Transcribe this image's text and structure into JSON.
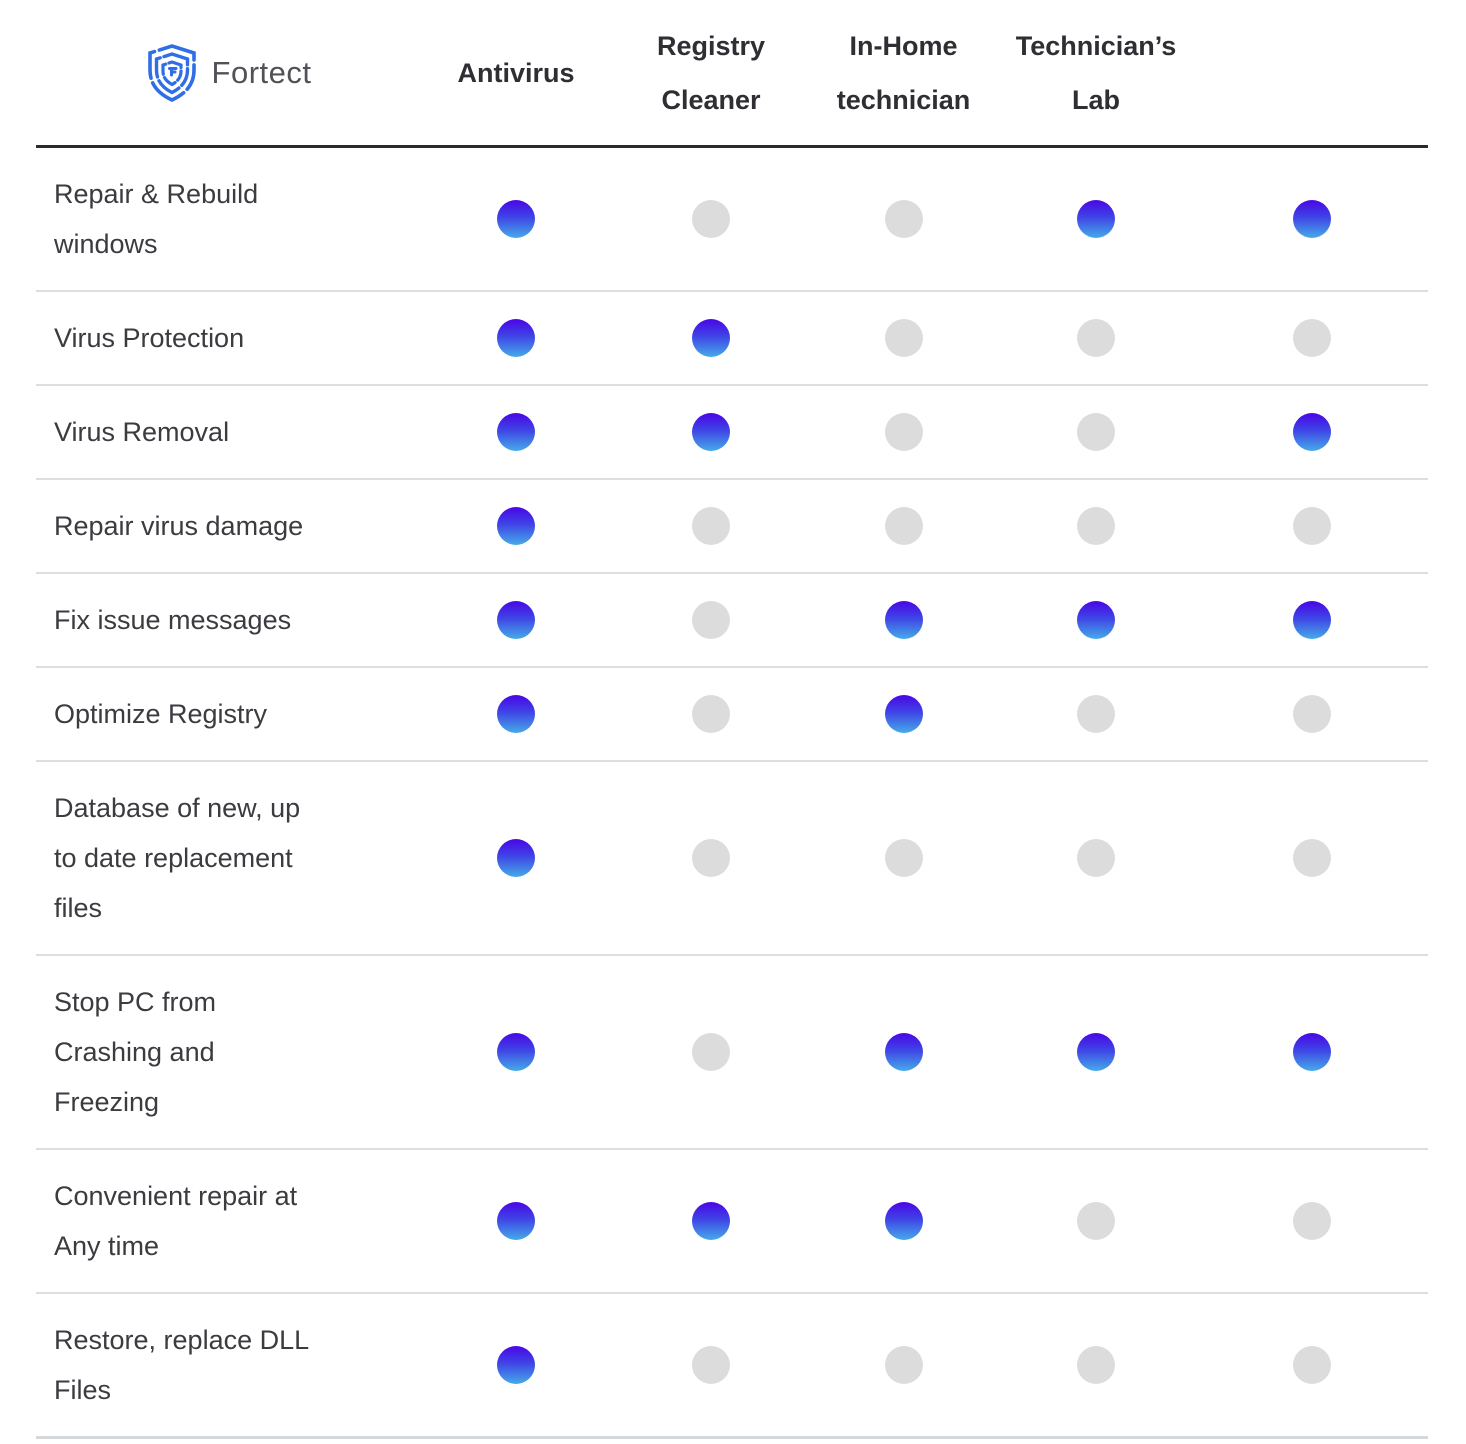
{
  "brand": {
    "name": "Fortect",
    "logo_icon": "fortect-shield-icon",
    "logo_color": "#2f6ee4"
  },
  "columns": [
    {
      "label": "Fortect",
      "is_brand": true
    },
    {
      "label": "Antivirus"
    },
    {
      "label": "Registry\nCleaner"
    },
    {
      "label": "In-Home\ntechnician"
    },
    {
      "label": "Technician’s\nLab"
    }
  ],
  "rows": [
    {
      "feature": "Repair & Rebuild\nwindows",
      "values": [
        true,
        false,
        false,
        true,
        true
      ]
    },
    {
      "feature": "Virus Protection",
      "values": [
        true,
        true,
        false,
        false,
        false
      ]
    },
    {
      "feature": "Virus Removal",
      "values": [
        true,
        true,
        false,
        false,
        true
      ]
    },
    {
      "feature": "Repair virus damage",
      "values": [
        true,
        false,
        false,
        false,
        false
      ]
    },
    {
      "feature": "Fix issue messages",
      "values": [
        true,
        false,
        true,
        true,
        true
      ]
    },
    {
      "feature": "Optimize Registry",
      "values": [
        true,
        false,
        true,
        false,
        false
      ]
    },
    {
      "feature": "Database of new, up\nto date replacement\nfiles",
      "values": [
        true,
        false,
        false,
        false,
        false
      ]
    },
    {
      "feature": "Stop PC from\nCrashing and\nFreezing",
      "values": [
        true,
        false,
        true,
        true,
        true
      ]
    },
    {
      "feature": "Convenient repair at\nAny time",
      "values": [
        true,
        true,
        true,
        false,
        false
      ]
    },
    {
      "feature": "Restore, replace DLL\nFiles",
      "values": [
        true,
        false,
        false,
        false,
        false
      ]
    }
  ],
  "legend": {
    "included_dot": "gradient-blue-dot",
    "excluded_dot": "gray-dot"
  },
  "colors": {
    "dot_on_top": "#4a06e6",
    "dot_on_mid": "#3f44e6",
    "dot_on_bottom": "#45aae8",
    "dot_off": "#dcdcdc",
    "heading_text": "#2e2e33",
    "label_text": "#3b3b40",
    "brand_text": "#515158",
    "brand_blue": "#2f6ee4",
    "divider_dark": "#2b2b2b",
    "divider_light": "#dcdfe2"
  }
}
